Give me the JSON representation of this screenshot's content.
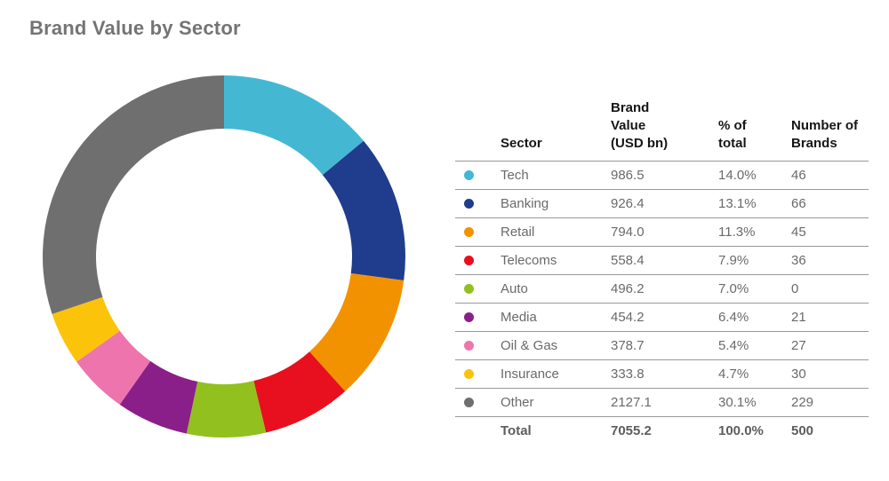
{
  "title": "Brand Value by Sector",
  "table": {
    "headers": {
      "sector": "Sector",
      "value": "Brand\nValue\n(USD bn)",
      "pct": "% of\ntotal",
      "brands": "Number of\nBrands"
    },
    "rows": [
      {
        "sector": "Tech",
        "value": "986.5",
        "pct": "14.0%",
        "brands": "46",
        "color": "#44b8d3"
      },
      {
        "sector": "Banking",
        "value": "926.4",
        "pct": "13.1%",
        "brands": "66",
        "color": "#1f3d8c"
      },
      {
        "sector": "Retail",
        "value": "794.0",
        "pct": "11.3%",
        "brands": "45",
        "color": "#f39200"
      },
      {
        "sector": "Telecoms",
        "value": "558.4",
        "pct": "7.9%",
        "brands": "36",
        "color": "#e8101e"
      },
      {
        "sector": "Auto",
        "value": "496.2",
        "pct": "7.0%",
        "brands": "0",
        "color": "#92c01f"
      },
      {
        "sector": "Media",
        "value": "454.2",
        "pct": "6.4%",
        "brands": "21",
        "color": "#8b1f8a"
      },
      {
        "sector": "Oil & Gas",
        "value": "378.7",
        "pct": "5.4%",
        "brands": "27",
        "color": "#ee74ae"
      },
      {
        "sector": "Insurance",
        "value": "333.8",
        "pct": "4.7%",
        "brands": "30",
        "color": "#fcc30b"
      },
      {
        "sector": "Other",
        "value": "2127.1",
        "pct": "30.1%",
        "brands": "229",
        "color": "#6f6f6f"
      }
    ],
    "total": {
      "label": "Total",
      "value": "7055.2",
      "pct": "100.0%",
      "brands": "500"
    }
  },
  "chart_data": {
    "type": "pie",
    "subtype": "donut",
    "title": "Brand Value by Sector",
    "categories": [
      "Tech",
      "Banking",
      "Retail",
      "Telecoms",
      "Auto",
      "Media",
      "Oil & Gas",
      "Insurance",
      "Other"
    ],
    "values": [
      986.5,
      926.4,
      794.0,
      558.4,
      496.2,
      454.2,
      378.7,
      333.8,
      2127.1
    ],
    "percents": [
      14.0,
      13.1,
      11.3,
      7.9,
      7.0,
      6.4,
      5.4,
      4.7,
      30.1
    ],
    "brand_counts": [
      46,
      66,
      45,
      36,
      0,
      21,
      27,
      30,
      229
    ],
    "colors": [
      "#44b8d3",
      "#1f3d8c",
      "#f39200",
      "#e8101e",
      "#92c01f",
      "#8b1f8a",
      "#ee74ae",
      "#fcc30b",
      "#6f6f6f"
    ],
    "total_value": 7055.2,
    "units": "USD bn",
    "start_angle_deg": 0,
    "direction": "clockwise",
    "inner_radius_ratio": 0.706,
    "legend_position": "table-right"
  }
}
